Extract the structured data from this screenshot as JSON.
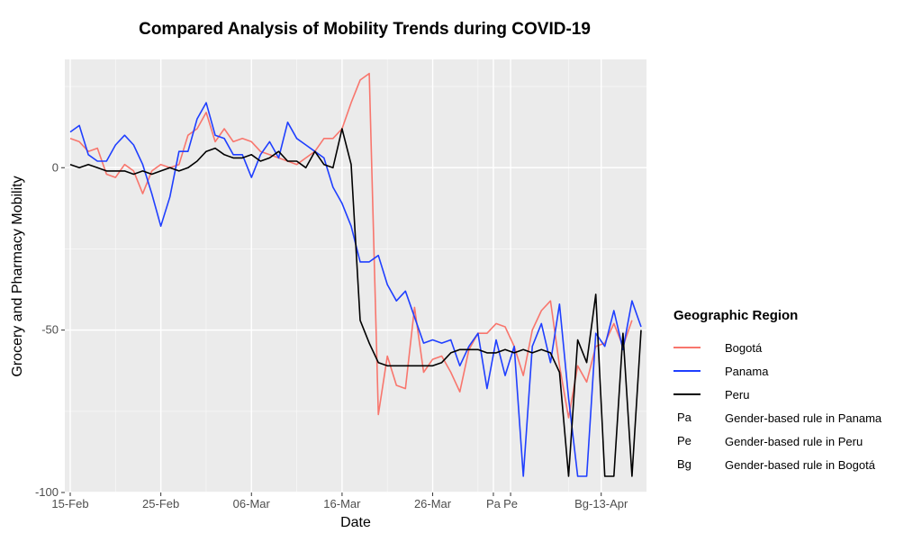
{
  "chart_data": {
    "type": "line",
    "title": "Compared Analysis of Mobility Trends during COVID-19",
    "xlabel": "Date",
    "ylabel": "Grocery and Pharmacy Mobility",
    "ylim": [
      -100,
      35
    ],
    "xlim": [
      0,
      63
    ],
    "x_axis_note": "x values are days since 15-Feb",
    "x_ticks": [
      {
        "x": 0,
        "label": "15-Feb"
      },
      {
        "x": 10,
        "label": "25-Feb"
      },
      {
        "x": 20,
        "label": "06-Mar"
      },
      {
        "x": 30,
        "label": "16-Mar"
      },
      {
        "x": 40,
        "label": "26-Mar"
      },
      {
        "x": 46.7,
        "label": "Pa"
      },
      {
        "x": 48.6,
        "label": "Pe"
      },
      {
        "x": 58.6,
        "label": "Bg-13-Apr"
      }
    ],
    "y_ticks": [
      {
        "y": 0,
        "label": "0"
      },
      {
        "y": -50,
        "label": "-50"
      },
      {
        "y": -100,
        "label": "-100"
      }
    ],
    "grid": true,
    "legend_placement": "right",
    "series": [
      {
        "name": "Bogotá",
        "color": "#F8766D",
        "x": [
          0,
          1,
          2,
          3,
          4,
          5,
          6,
          7,
          8,
          9,
          10,
          11,
          12,
          13,
          14,
          15,
          16,
          17,
          18,
          19,
          20,
          21,
          22,
          23,
          24,
          25,
          26,
          27,
          28,
          29,
          30,
          31,
          32,
          33,
          34,
          35,
          36,
          37,
          38,
          39,
          40,
          41,
          42,
          43,
          44,
          45,
          46,
          47,
          48,
          49,
          50,
          51,
          52,
          53,
          54,
          55,
          56,
          57,
          58,
          59,
          60,
          61,
          62,
          63
        ],
        "values": [
          9,
          8,
          5,
          6,
          -2,
          -3,
          1,
          -1,
          -8,
          -1,
          1,
          0,
          1,
          10,
          12,
          17,
          8,
          12,
          8,
          9,
          8,
          5,
          4,
          3,
          2,
          1,
          3,
          5,
          9,
          9,
          12,
          20,
          27,
          29,
          -76,
          -58,
          -67,
          -68,
          -43,
          -63,
          -59,
          -58,
          -63,
          -69,
          -56,
          -51,
          -51,
          -48,
          -49,
          -55,
          -64,
          -50,
          -44,
          -41,
          -61,
          -77,
          -61,
          -66,
          -55,
          -54,
          -48,
          -55,
          -47,
          null
        ]
      },
      {
        "name": "Panama",
        "color": "#1F3FFF",
        "x": [
          0,
          1,
          2,
          3,
          4,
          5,
          6,
          7,
          8,
          9,
          10,
          11,
          12,
          13,
          14,
          15,
          16,
          17,
          18,
          19,
          20,
          21,
          22,
          23,
          24,
          25,
          26,
          27,
          28,
          29,
          30,
          31,
          32,
          33,
          34,
          35,
          36,
          37,
          38,
          39,
          40,
          41,
          42,
          43,
          44,
          45,
          46,
          47,
          48,
          49,
          50,
          51,
          52,
          53,
          54,
          55,
          56,
          57,
          58,
          59,
          60,
          61,
          62,
          63
        ],
        "values": [
          11,
          13,
          4,
          2,
          2,
          7,
          10,
          7,
          1,
          -8,
          -18,
          -9,
          5,
          5,
          15,
          20,
          10,
          9,
          4,
          4,
          -3,
          4,
          8,
          3,
          14,
          9,
          7,
          5,
          3,
          -6,
          -11,
          -18,
          -29,
          -29,
          -27,
          -36,
          -41,
          -38,
          -46,
          -54,
          -53,
          -54,
          -53,
          -61,
          -55,
          -51,
          -68,
          -53,
          -64,
          -55,
          -95,
          -55,
          -48,
          -60,
          -42,
          -71,
          -95,
          -95,
          -51,
          -55,
          -44,
          -56,
          -41,
          -49
        ]
      },
      {
        "name": "Peru",
        "color": "#000000",
        "x": [
          0,
          1,
          2,
          3,
          4,
          5,
          6,
          7,
          8,
          9,
          10,
          11,
          12,
          13,
          14,
          15,
          16,
          17,
          18,
          19,
          20,
          21,
          22,
          23,
          24,
          25,
          26,
          27,
          28,
          29,
          30,
          31,
          32,
          33,
          34,
          35,
          36,
          37,
          38,
          39,
          40,
          41,
          42,
          43,
          44,
          45,
          46,
          47,
          48,
          49,
          50,
          51,
          52,
          53,
          54,
          55,
          56,
          57,
          58,
          59,
          60,
          61,
          62,
          63
        ],
        "values": [
          1,
          0,
          1,
          0,
          -1,
          -1,
          -1,
          -2,
          -1,
          -2,
          -1,
          0,
          -1,
          0,
          2,
          5,
          6,
          4,
          3,
          3,
          4,
          2,
          3,
          5,
          2,
          2,
          0,
          5,
          1,
          0,
          12,
          1,
          -47,
          -54,
          -60,
          -61,
          -61,
          -61,
          -61,
          -61,
          -61,
          -60,
          -57,
          -56,
          -56,
          -56,
          -57,
          -57,
          -56,
          -57,
          -56,
          -57,
          -56,
          -57,
          -63,
          -95,
          -53,
          -60,
          -39,
          -95,
          -95,
          -51,
          -95,
          -50
        ]
      }
    ],
    "annotations": [
      {
        "code": "Pa",
        "text": "Gender-based rule in Panama"
      },
      {
        "code": "Pe",
        "text": "Gender-based rule in Peru"
      },
      {
        "code": "Bg",
        "text": "Gender-based rule in Bogotá"
      }
    ]
  },
  "legend": {
    "title": "Geographic Region"
  }
}
